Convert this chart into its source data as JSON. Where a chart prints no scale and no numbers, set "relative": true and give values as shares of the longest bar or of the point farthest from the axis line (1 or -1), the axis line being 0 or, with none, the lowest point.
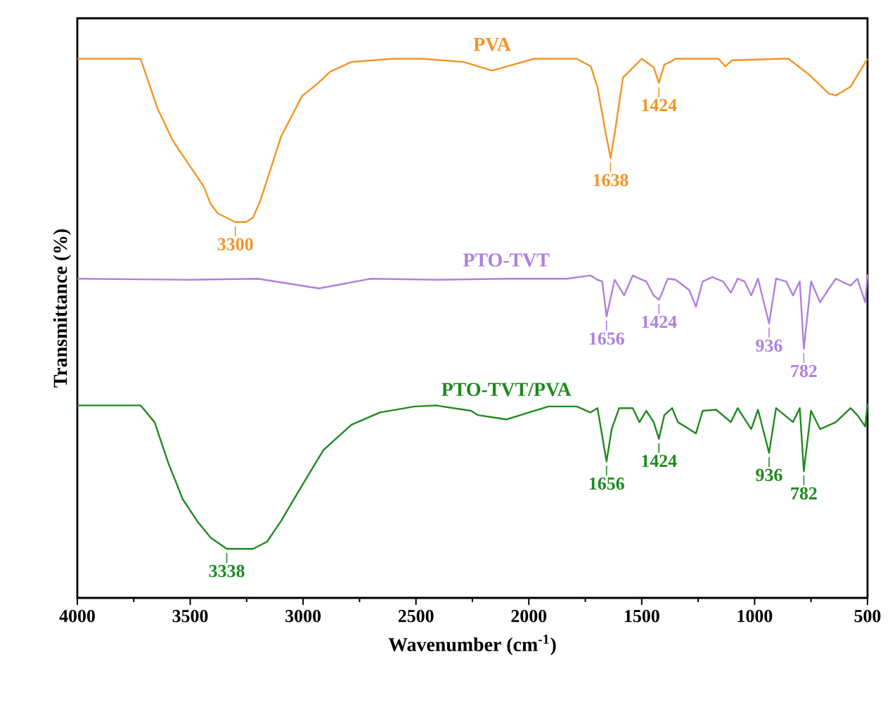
{
  "chart_data": {
    "type": "line",
    "relative": true,
    "xlabel": "Wavenumber (cm$^{-1}$)",
    "ylabel": "Transmittance (%)",
    "xlim": [
      4000,
      500
    ],
    "xticks": [
      4000,
      3500,
      3000,
      2500,
      2000,
      1500,
      1000,
      500
    ],
    "marker": "none",
    "line_style": "solid",
    "series": [
      {
        "name": "PVA",
        "color": "#f39423",
        "x": [
          4000,
          3720,
          3645,
          3577,
          3440,
          3410,
          3377,
          3300,
          3253,
          3222,
          3190,
          3097,
          3004,
          2941,
          2880,
          2786,
          2600,
          2474,
          2288,
          2163,
          1976,
          1788,
          1726,
          1696,
          1665,
          1638,
          1620,
          1583,
          1500,
          1447,
          1424,
          1400,
          1365,
          1350,
          1160,
          1130,
          1100,
          880,
          850,
          760,
          670,
          640,
          575,
          500
        ],
        "values": [
          1.0,
          1.0,
          0.908,
          0.848,
          0.763,
          0.731,
          0.713,
          0.697,
          0.697,
          0.705,
          0.736,
          0.856,
          0.931,
          0.952,
          0.976,
          0.994,
          1.0,
          1.0,
          0.994,
          0.978,
          1.0,
          1.0,
          0.986,
          0.947,
          0.874,
          0.816,
          0.861,
          0.965,
          1.0,
          0.984,
          0.955,
          0.989,
          0.996,
          1.0,
          1.0,
          0.986,
          0.997,
          1.0,
          1.0,
          0.971,
          0.935,
          0.932,
          0.948,
          1.0
        ]
      },
      {
        "name": "PTO-TVT",
        "color": "#b07fe0",
        "x": [
          4000,
          3500,
          3200,
          2930,
          2700,
          2400,
          2100,
          1833,
          1727,
          1696,
          1675,
          1656,
          1620,
          1578,
          1540,
          1510,
          1480,
          1447,
          1424,
          1410,
          1385,
          1350,
          1290,
          1260,
          1230,
          1187,
          1140,
          1105,
          1075,
          1045,
          1015,
          985,
          936,
          905,
          860,
          830,
          800,
          782,
          750,
          710,
          670,
          640,
          575,
          545,
          510,
          500
        ],
        "values": [
          0.592,
          0.59,
          0.592,
          0.574,
          0.592,
          0.59,
          0.592,
          0.592,
          0.598,
          0.59,
          0.587,
          0.522,
          0.59,
          0.561,
          0.598,
          0.592,
          0.587,
          0.561,
          0.553,
          0.566,
          0.592,
          0.59,
          0.571,
          0.54,
          0.587,
          0.595,
          0.587,
          0.566,
          0.592,
          0.587,
          0.561,
          0.592,
          0.509,
          0.592,
          0.587,
          0.561,
          0.587,
          0.462,
          0.587,
          0.548,
          0.574,
          0.592,
          0.579,
          0.592,
          0.548,
          0.6
        ]
      },
      {
        "name": "PTO-TVT/PVA",
        "color": "#1e8a1e",
        "x": [
          4000,
          3720,
          3658,
          3595,
          3533,
          3470,
          3410,
          3338,
          3222,
          3160,
          3097,
          3004,
          2910,
          2786,
          2660,
          2506,
          2412,
          2256,
          2225,
          2100,
          1914,
          1788,
          1727,
          1696,
          1656,
          1633,
          1600,
          1540,
          1510,
          1480,
          1447,
          1424,
          1400,
          1365,
          1340,
          1290,
          1260,
          1230,
          1170,
          1105,
          1075,
          1015,
          985,
          936,
          905,
          830,
          800,
          782,
          750,
          710,
          640,
          575,
          545,
          510,
          500
        ],
        "values": [
          0.357,
          0.357,
          0.326,
          0.248,
          0.183,
          0.143,
          0.112,
          0.091,
          0.091,
          0.104,
          0.143,
          0.209,
          0.274,
          0.321,
          0.344,
          0.355,
          0.357,
          0.347,
          0.339,
          0.331,
          0.355,
          0.355,
          0.344,
          0.352,
          0.253,
          0.313,
          0.352,
          0.352,
          0.326,
          0.347,
          0.326,
          0.295,
          0.339,
          0.352,
          0.326,
          0.313,
          0.305,
          0.347,
          0.349,
          0.326,
          0.352,
          0.313,
          0.349,
          0.269,
          0.352,
          0.326,
          0.352,
          0.235,
          0.347,
          0.313,
          0.326,
          0.352,
          0.339,
          0.318,
          0.36
        ]
      }
    ],
    "annotations": [
      {
        "text": "3300",
        "x": 3300,
        "y": 0.697
      },
      {
        "text": "1638",
        "x": 1638,
        "y": 0.816
      },
      {
        "text": "1424",
        "x": 1424,
        "y": 0.955
      },
      {
        "text": "1656",
        "x": 1656,
        "y": 0.522
      },
      {
        "text": "1424",
        "x": 1424,
        "y": 0.553
      },
      {
        "text": "936",
        "x": 936,
        "y": 0.509
      },
      {
        "text": "782",
        "x": 782,
        "y": 0.462
      },
      {
        "text": "3338",
        "x": 3338,
        "y": 0.091
      },
      {
        "text": "1656",
        "x": 1656,
        "y": 0.253
      },
      {
        "text": "1424",
        "x": 1424,
        "y": 0.295
      },
      {
        "text": "936",
        "x": 936,
        "y": 0.269
      },
      {
        "text": "782",
        "x": 782,
        "y": 0.235
      }
    ]
  }
}
